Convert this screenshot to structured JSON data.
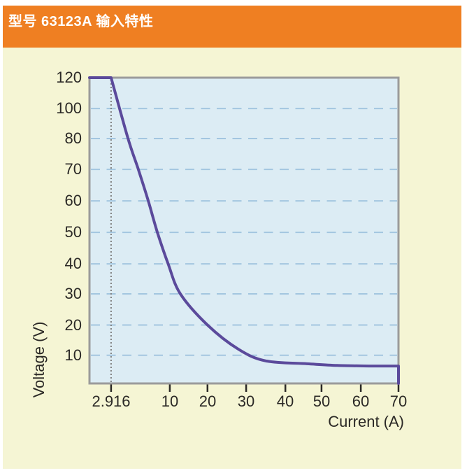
{
  "header": {
    "title": "型号 63123A 输入特性"
  },
  "colors": {
    "header_bg": "#ef7f22",
    "header_text": "#ffffff",
    "panel_bg": "#f5f5d4",
    "plot_bg": "#dcecf4",
    "plot_border": "#9b9b9b",
    "grid_line": "#a3c6e0",
    "curve": "#5b4a9b",
    "dotted_line": "#7f7f7f",
    "text": "#2b2926"
  },
  "chart_data": {
    "type": "line",
    "title": "型号 63123A 输入特性",
    "xlabel": "Current (A)",
    "ylabel": "Voltage (V)",
    "x_tick_labels": [
      "2.916",
      "10",
      "20",
      "30",
      "40",
      "50",
      "60",
      "70"
    ],
    "x_tick_values": [
      2.916,
      10,
      20,
      30,
      40,
      50,
      60,
      70
    ],
    "y_tick_labels": [
      "120",
      "100",
      "80",
      "70",
      "60",
      "50",
      "40",
      "30",
      "20",
      "10"
    ],
    "y_tick_values": [
      120,
      100,
      80,
      70,
      60,
      50,
      40,
      30,
      20,
      10
    ],
    "x_range": [
      0,
      70
    ],
    "y_range": [
      0,
      120
    ],
    "grid": "horizontal-dashed",
    "legend": "none",
    "annotation": {
      "dotted_vertical_line_at_x": 2.916
    },
    "series": [
      {
        "name": "input-characteristic-curve",
        "segments": [
          {
            "type": "line",
            "points": [
              [
                0,
                120
              ],
              [
                2.916,
                120
              ]
            ]
          },
          {
            "type": "smooth",
            "points": [
              [
                2.916,
                120
              ],
              [
                4.9,
                81
              ],
              [
                6.2,
                70
              ],
              [
                7.4,
                60
              ],
              [
                8.5,
                50
              ],
              [
                9.8,
                40
              ],
              [
                12.8,
                30
              ],
              [
                20,
                20
              ],
              [
                28,
                12
              ],
              [
                35,
                8
              ],
              [
                46,
                7
              ],
              [
                54,
                6.4
              ],
              [
                63,
                6.2
              ],
              [
                70,
                6.2
              ]
            ]
          },
          {
            "type": "line",
            "points": [
              [
                70,
                6.2
              ],
              [
                70,
                0
              ]
            ]
          }
        ]
      }
    ],
    "layout": {
      "x_axis_anchors": {
        "values": [
          0,
          2.916,
          10,
          20,
          30,
          40,
          50,
          60,
          70
        ],
        "fracs": [
          0,
          0.07,
          0.26,
          0.382,
          0.507,
          0.634,
          0.751,
          0.878,
          1.0
        ]
      },
      "y_axis_anchors": {
        "values": [
          120,
          100,
          80,
          70,
          60,
          50,
          40,
          30,
          20,
          10,
          0
        ],
        "fracs": [
          0,
          0.101,
          0.199,
          0.3,
          0.403,
          0.506,
          0.609,
          0.707,
          0.809,
          0.908,
          1.0
        ]
      },
      "note": "axis tick spacing is non-linear, drawn as in source figure"
    }
  }
}
